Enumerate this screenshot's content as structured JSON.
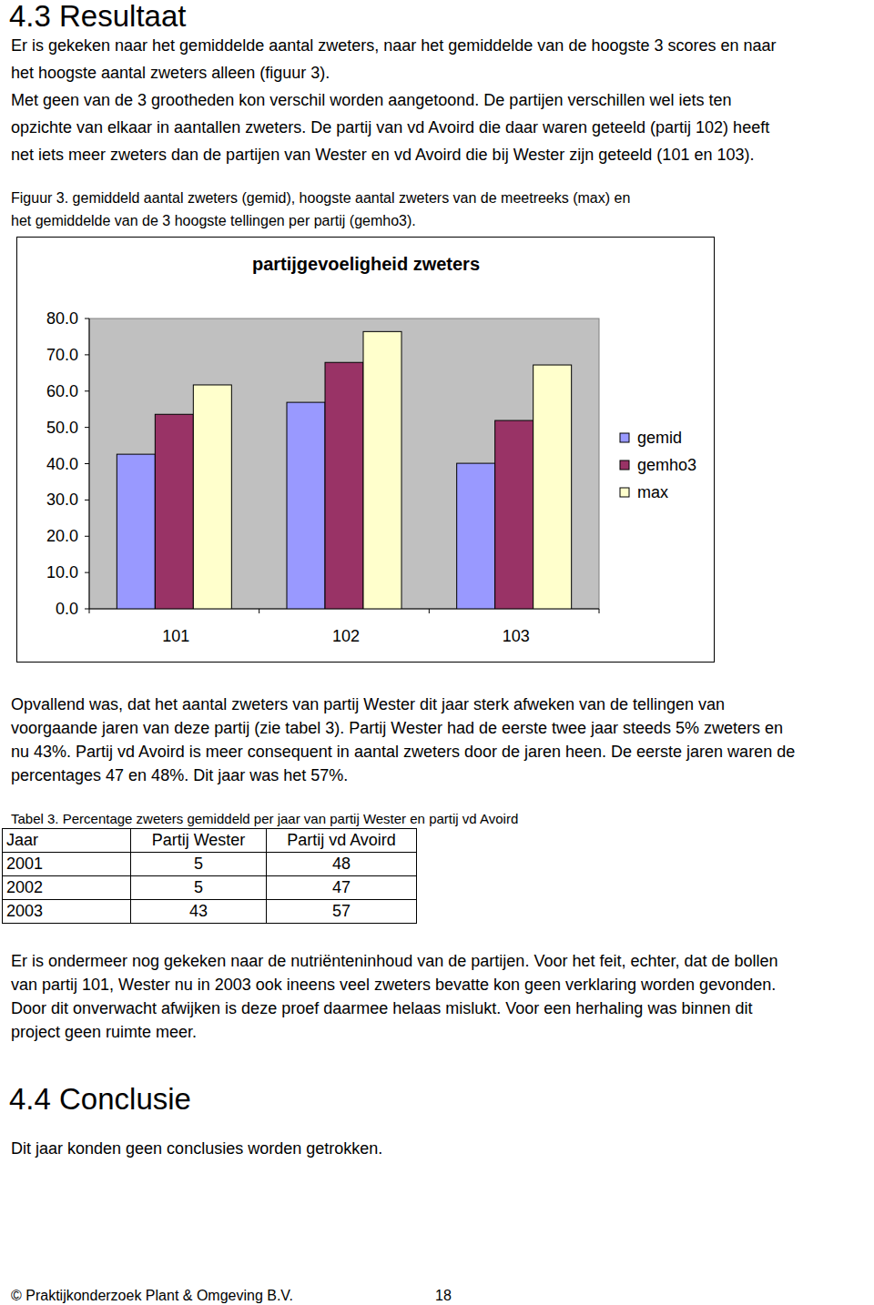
{
  "document": {
    "section_heading": "4.3 Resultaat",
    "intro_lines": [
      "Er is gekeken naar het gemiddelde aantal zweters, naar het gemiddelde van de hoogste 3 scores en naar",
      "het hoogste aantal zweters alleen (figuur 3).",
      "Met geen van de 3 grootheden kon verschil worden aangetoond. De partijen verschillen wel iets ten",
      "opzichte van elkaar in aantallen zweters. De partij van vd Avoird die daar waren geteeld (partij 102) heeft",
      "net iets meer zweters dan de partijen van Wester en vd Avoird die bij Wester zijn geteeld (101 en 103)."
    ],
    "figure_caption_lines": [
      "Figuur 3. gemiddeld aantal zweters (gemid), hoogste aantal zweters van de meetreeks (max) en",
      "het gemiddelde van de 3 hoogste tellingen per partij (gemho3)."
    ],
    "paragraph2_lines": [
      "Opvallend was, dat het aantal zweters van partij Wester  dit jaar sterk afweken van de tellingen van",
      "voorgaande jaren van deze partij (zie tabel 3). Partij Wester had de eerste twee jaar steeds 5% zweters en",
      "nu 43%. Partij vd Avoird is meer consequent in aantal zweters door de jaren heen. De eerste jaren waren de",
      "percentages 47 en 48%. Dit jaar was het 57%."
    ],
    "table_caption": "Tabel 3. Percentage zweters gemiddeld per jaar van partij Wester en partij vd Avoird",
    "table": {
      "header": [
        "Jaar",
        "Partij Wester",
        "Partij vd Avoird"
      ],
      "rows": [
        [
          "2001",
          "5",
          "48"
        ],
        [
          "2002",
          "5",
          "47"
        ],
        [
          "2003",
          "43",
          "57"
        ]
      ]
    },
    "paragraph3_lines": [
      "Er is ondermeer nog gekeken naar de nutriënteninhoud van de partijen. Voor het feit, echter, dat de bollen",
      "van partij 101, Wester nu in 2003 ook ineens veel zweters bevatte kon geen verklaring worden gevonden.",
      "Door dit onverwacht afwijken is deze proef daarmee helaas mislukt. Voor een herhaling was binnen dit",
      "project geen ruimte meer."
    ],
    "conclusion_heading": "4.4 Conclusie",
    "conclusion_text": "Dit jaar konden geen conclusies worden getrokken.",
    "footer": {
      "left": "© Praktijkonderzoek Plant & Omgeving B.V.",
      "page_number": "18"
    }
  },
  "chart_data": {
    "type": "bar",
    "title": "partijgevoeligheid zweters",
    "categories": [
      "101",
      "102",
      "103"
    ],
    "series": [
      {
        "name": "gemid",
        "color": "#9999ff",
        "values": [
          42.6,
          56.9,
          40.1
        ]
      },
      {
        "name": "gemho3",
        "color": "#993366",
        "values": [
          53.6,
          67.9,
          51.9
        ]
      },
      {
        "name": "max",
        "color": "#ffffcc",
        "values": [
          61.7,
          76.4,
          67.2
        ]
      }
    ],
    "ylim": [
      0,
      80
    ],
    "yticks": [
      {
        "value": 0,
        "label": "0.0"
      },
      {
        "value": 10,
        "label": "10.0"
      },
      {
        "value": 20,
        "label": "20.0"
      },
      {
        "value": 30,
        "label": "30.0"
      },
      {
        "value": 40,
        "label": "40.0"
      },
      {
        "value": 50,
        "label": "50.0"
      },
      {
        "value": 60,
        "label": "60.0"
      },
      {
        "value": 70,
        "label": "70.0"
      },
      {
        "value": 80,
        "label": "80.0"
      }
    ],
    "grid": false,
    "legend": "right"
  }
}
